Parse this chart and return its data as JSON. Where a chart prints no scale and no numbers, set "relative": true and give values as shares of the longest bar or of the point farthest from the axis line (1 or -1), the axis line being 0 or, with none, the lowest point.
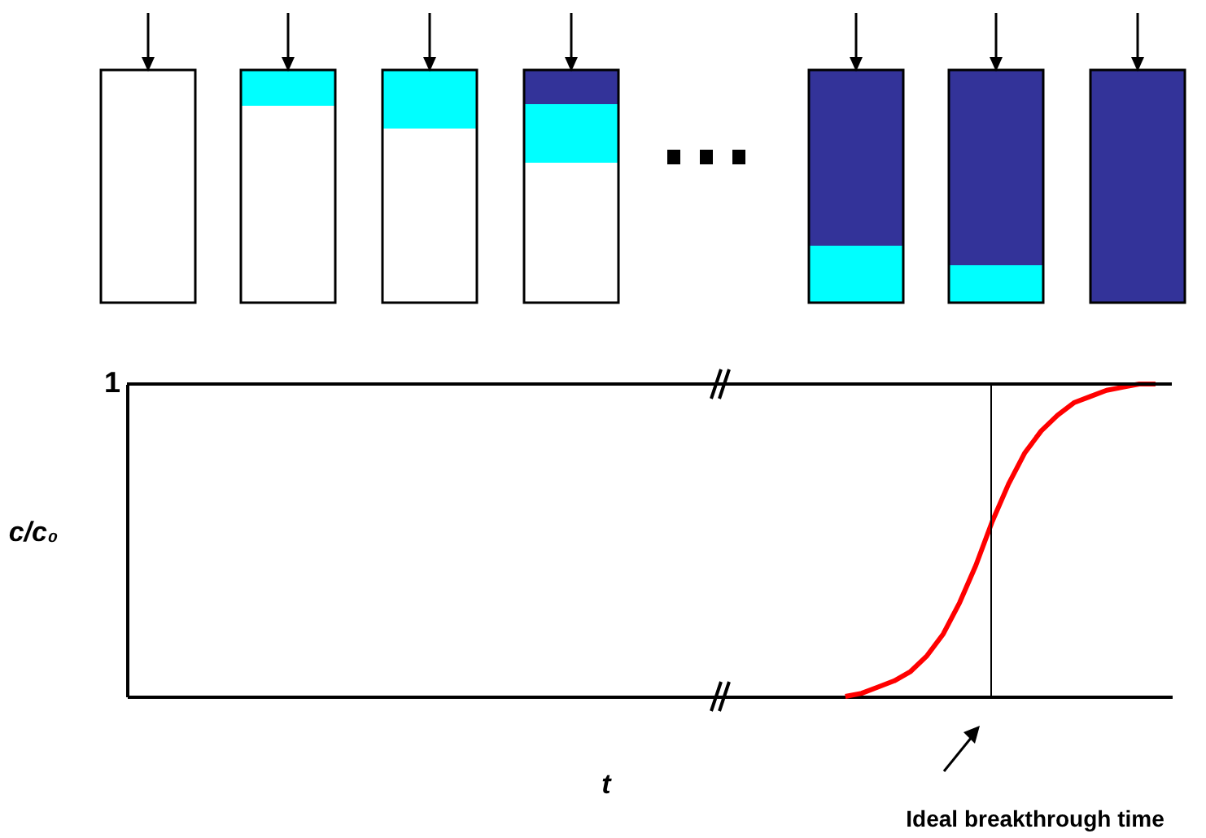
{
  "chart_data": {
    "type": "line",
    "relative": true,
    "xlabel": "t",
    "ylabel": "c/c₀",
    "categories": [
      null,
      null,
      null,
      null,
      null,
      null,
      null,
      null,
      null,
      null,
      null,
      null,
      null,
      null,
      null,
      null,
      null,
      null,
      null,
      null,
      null,
      null,
      null,
      null,
      null,
      null,
      null,
      null,
      null,
      null,
      null,
      null,
      null,
      null,
      null,
      null,
      null,
      null,
      null,
      null,
      null,
      null,
      null,
      null,
      null,
      null,
      null,
      null,
      null,
      null,
      null,
      null,
      null,
      null,
      null,
      null,
      null,
      null,
      null,
      null,
      null,
      null,
      null,
      null,
      null
    ],
    "series": [
      {
        "color": "#ff0000",
        "values": [
          null,
          null,
          null,
          null,
          null,
          null,
          null,
          null,
          null,
          null,
          null,
          null,
          null,
          null,
          null,
          null,
          null,
          null,
          null,
          null,
          null,
          null,
          null,
          null,
          null,
          null,
          null,
          null,
          null,
          null,
          null,
          null,
          null,
          null,
          null,
          null,
          null,
          null,
          null,
          null,
          null,
          null,
          null,
          null,
          0,
          0.01,
          0.03,
          0.05,
          0.08,
          0.13,
          0.2,
          0.3,
          0.42,
          0.56,
          0.68,
          0.78,
          0.85,
          0.9,
          0.94,
          0.96,
          0.98,
          0.99,
          1,
          1,
          null
        ]
      }
    ],
    "ref_lines": [
      {
        "axis": "y",
        "value": 1,
        "label": "1",
        "color": "#000000"
      }
    ],
    "annotations": [
      "Ideal breakthrough time"
    ],
    "grid": false,
    "marker": "none",
    "line_style": "solid"
  }
}
